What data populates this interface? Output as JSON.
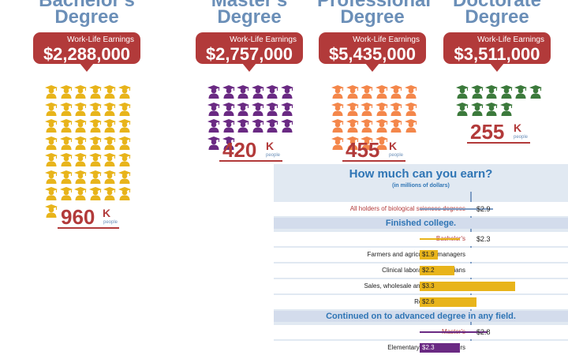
{
  "colors": {
    "bachelor": "#e8b41b",
    "master": "#6a2a83",
    "professional": "#f4874b",
    "doctorate": "#3c7a3c",
    "accent_red": "#b23a3a",
    "title_blue": "#6b8fb8",
    "panel_blue": "#2f75b5"
  },
  "icon": "graduate-icon",
  "degrees": [
    {
      "title": "Bachelor's",
      "title2": "Degree",
      "earnings_label": "Work-Life Earnings",
      "earnings": "$2,288,000",
      "count": "960",
      "unit": "K",
      "people": "people"
    },
    {
      "title": "Master's",
      "title2": "Degree",
      "earnings_label": "Work-Life Earnings",
      "earnings": "$2,757,000",
      "count": "420",
      "unit": "K",
      "people": "people"
    },
    {
      "title": "Professional",
      "title2": "Degree",
      "earnings_label": "Work-Life Earnings",
      "earnings": "$5,435,000",
      "count": "455",
      "unit": "K",
      "people": "people"
    },
    {
      "title": "Doctorate",
      "title2": "Degree",
      "earnings_label": "Work-Life Earnings",
      "earnings": "$3,511,000",
      "count": "255",
      "unit": "K",
      "people": "people"
    }
  ],
  "chart_data": [
    {
      "type": "pictograph",
      "categories": [
        "Bachelor's Degree",
        "Master's Degree",
        "Professional Degree",
        "Doctorate Degree"
      ],
      "values": [
        960,
        420,
        455,
        255
      ],
      "value_unit": "K people",
      "icons": [
        43,
        20,
        22,
        10
      ],
      "earnings": [
        2288000,
        2757000,
        5435000,
        3511000
      ]
    },
    {
      "type": "bar",
      "title": "How much can you earn?",
      "subtitle": "(in millions of dollars)",
      "reference_line": 2.5,
      "rows": [
        {
          "kind": "row",
          "label": "All holders of biological sciences degrees",
          "value": 2.9,
          "display": "$2.9",
          "style": "line",
          "color": "#7d9cc4",
          "label_color": "red"
        },
        {
          "kind": "section",
          "label": "Finished college."
        },
        {
          "kind": "row",
          "label": "Bachelor's",
          "value": 2.3,
          "display": "$2.3",
          "style": "line",
          "color": "#e8b41b",
          "label_color": "red"
        },
        {
          "kind": "row",
          "label": "Farmers and agricultural managers",
          "value": 1.9,
          "display": "$1.9",
          "style": "bar",
          "color": "#e8b41b"
        },
        {
          "kind": "row",
          "label": "Clinical laboratory technicians",
          "value": 2.2,
          "display": "$2.2",
          "style": "bar",
          "color": "#e8b41b"
        },
        {
          "kind": "row",
          "label": "Sales, wholesale and manufacturing",
          "value": 3.3,
          "display": "$3.3",
          "style": "bar",
          "color": "#e8b41b"
        },
        {
          "kind": "row",
          "label": "Registered nurses",
          "value": 2.6,
          "display": "$2.6",
          "style": "bar",
          "color": "#e8b41b"
        },
        {
          "kind": "section",
          "label": "Continued on to advanced degree in any field."
        },
        {
          "kind": "row",
          "label": "Master's",
          "value": 2.8,
          "display": "$2.8",
          "style": "line",
          "color": "#6a2a83",
          "label_color": "red"
        },
        {
          "kind": "row",
          "label": "Elementary school teachers",
          "value": 2.3,
          "display": "$2.3",
          "style": "bar",
          "color": "#6a2a83"
        }
      ]
    }
  ]
}
